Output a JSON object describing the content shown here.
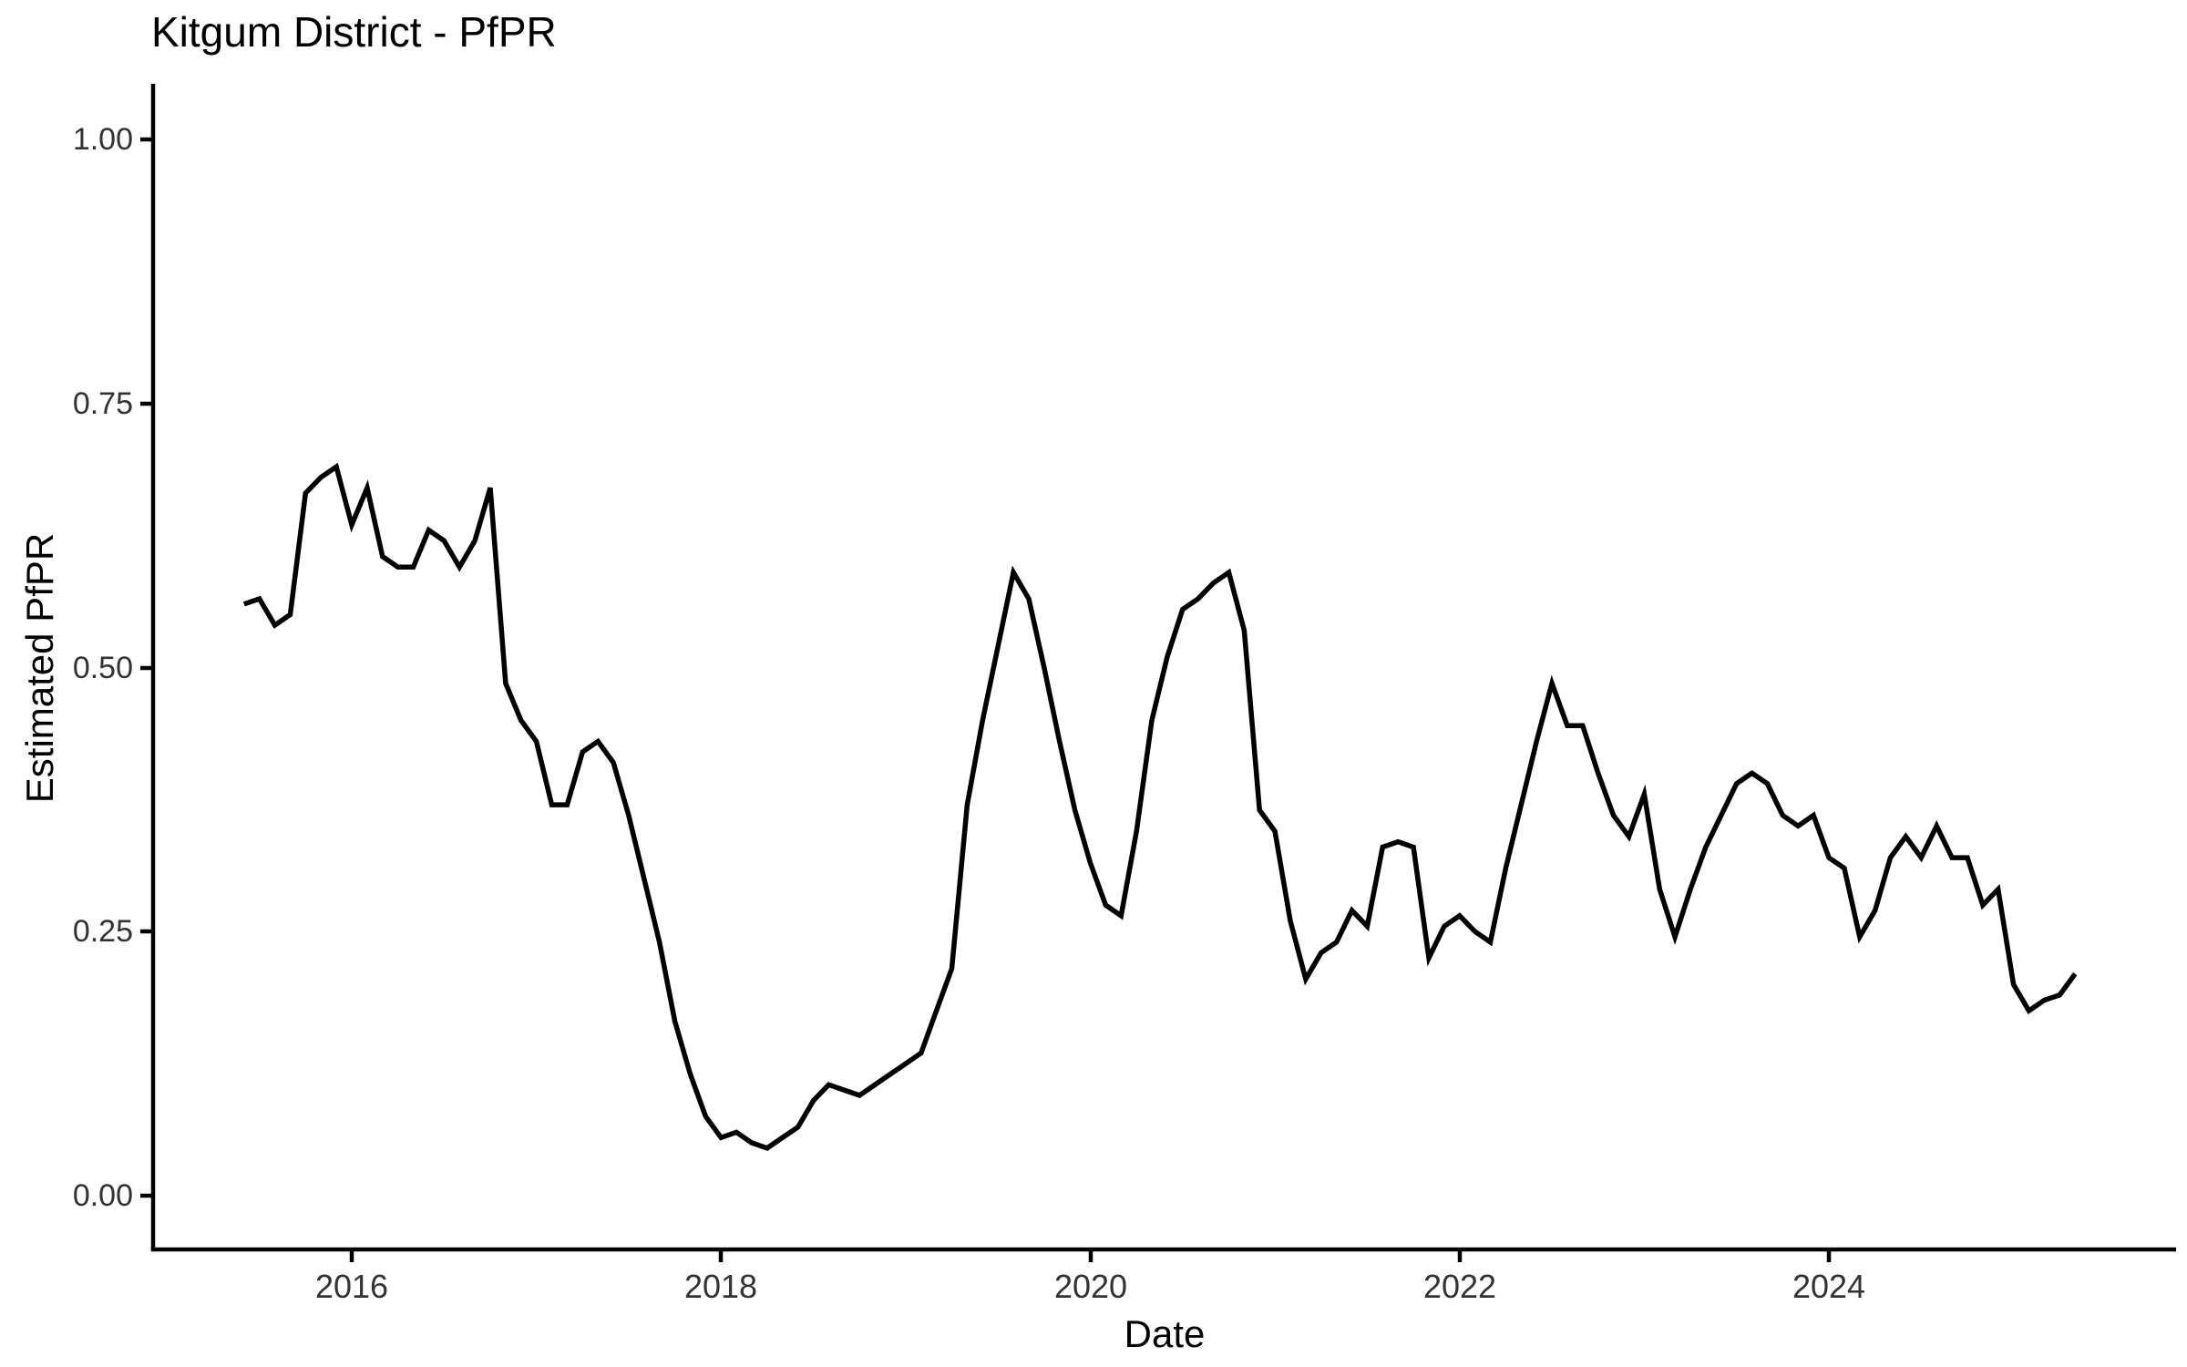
{
  "chart_data": {
    "type": "line",
    "title": "Kitgum District - PfPR",
    "xlabel": "Date",
    "ylabel": "Estimated PfPR",
    "x_tick_labels": [
      "2016",
      "2018",
      "2020",
      "2022",
      "2024"
    ],
    "y_tick_labels": [
      "0.00",
      "0.25",
      "0.50",
      "0.75",
      "1.00"
    ],
    "ylim": [
      0,
      1
    ],
    "grid": "off",
    "legend": "none",
    "line_color": "#000000",
    "series": [
      {
        "name": "Estimated PfPR",
        "x": [
          "2015-06",
          "2015-07",
          "2015-08",
          "2015-09",
          "2015-10",
          "2015-11",
          "2015-12",
          "2016-01",
          "2016-02",
          "2016-03",
          "2016-04",
          "2016-05",
          "2016-06",
          "2016-07",
          "2016-08",
          "2016-09",
          "2016-10",
          "2016-11",
          "2016-12",
          "2017-01",
          "2017-02",
          "2017-03",
          "2017-04",
          "2017-05",
          "2017-06",
          "2017-07",
          "2017-08",
          "2017-09",
          "2017-10",
          "2017-11",
          "2017-12",
          "2018-01",
          "2018-02",
          "2018-03",
          "2018-04",
          "2018-05",
          "2018-06",
          "2018-07",
          "2018-08",
          "2018-09",
          "2018-10",
          "2018-11",
          "2018-12",
          "2019-01",
          "2019-02",
          "2019-03",
          "2019-04",
          "2019-05",
          "2019-06",
          "2019-07",
          "2019-08",
          "2019-09",
          "2019-10",
          "2019-11",
          "2019-12",
          "2020-01",
          "2020-02",
          "2020-03",
          "2020-04",
          "2020-05",
          "2020-06",
          "2020-07",
          "2020-08",
          "2020-09",
          "2020-10",
          "2020-11",
          "2020-12",
          "2021-01",
          "2021-02",
          "2021-03",
          "2021-04",
          "2021-05",
          "2021-06",
          "2021-07",
          "2021-08",
          "2021-09",
          "2021-10",
          "2021-11",
          "2021-12",
          "2022-01",
          "2022-02",
          "2022-03",
          "2022-04",
          "2022-05",
          "2022-06",
          "2022-07",
          "2022-08",
          "2022-09",
          "2022-10",
          "2022-11",
          "2022-12",
          "2023-01",
          "2023-02",
          "2023-03",
          "2023-04",
          "2023-05",
          "2023-06",
          "2023-07",
          "2023-08",
          "2023-09",
          "2023-10",
          "2023-11",
          "2023-12",
          "2024-01",
          "2024-02",
          "2024-03",
          "2024-04",
          "2024-05",
          "2024-06",
          "2024-07",
          "2024-08",
          "2024-09",
          "2024-10",
          "2024-11",
          "2024-12",
          "2025-01",
          "2025-02",
          "2025-03",
          "2025-04",
          "2025-05"
        ],
        "values": [
          0.56,
          0.565,
          0.54,
          0.55,
          0.665,
          0.68,
          0.69,
          0.635,
          0.67,
          0.605,
          0.595,
          0.595,
          0.63,
          0.62,
          0.595,
          0.62,
          0.67,
          0.485,
          0.45,
          0.43,
          0.37,
          0.37,
          0.42,
          0.43,
          0.41,
          0.36,
          0.3,
          0.24,
          0.165,
          0.115,
          0.075,
          0.055,
          0.06,
          0.05,
          0.045,
          0.055,
          0.065,
          0.09,
          0.105,
          0.1,
          0.095,
          0.105,
          0.115,
          0.125,
          0.135,
          0.175,
          0.215,
          0.37,
          0.45,
          0.52,
          0.59,
          0.565,
          0.5,
          0.43,
          0.365,
          0.315,
          0.275,
          0.265,
          0.345,
          0.45,
          0.51,
          0.555,
          0.565,
          0.58,
          0.59,
          0.535,
          0.365,
          0.345,
          0.26,
          0.205,
          0.23,
          0.24,
          0.27,
          0.255,
          0.33,
          0.335,
          0.33,
          0.225,
          0.255,
          0.265,
          0.25,
          0.24,
          0.31,
          0.37,
          0.43,
          0.485,
          0.445,
          0.445,
          0.4,
          0.36,
          0.34,
          0.38,
          0.29,
          0.245,
          0.29,
          0.33,
          0.36,
          0.39,
          0.4,
          0.39,
          0.36,
          0.35,
          0.36,
          0.32,
          0.31,
          0.245,
          0.27,
          0.32,
          0.34,
          0.32,
          0.35,
          0.32,
          0.32,
          0.275,
          0.29,
          0.2,
          0.175,
          0.185,
          0.19,
          0.21
        ]
      }
    ]
  }
}
